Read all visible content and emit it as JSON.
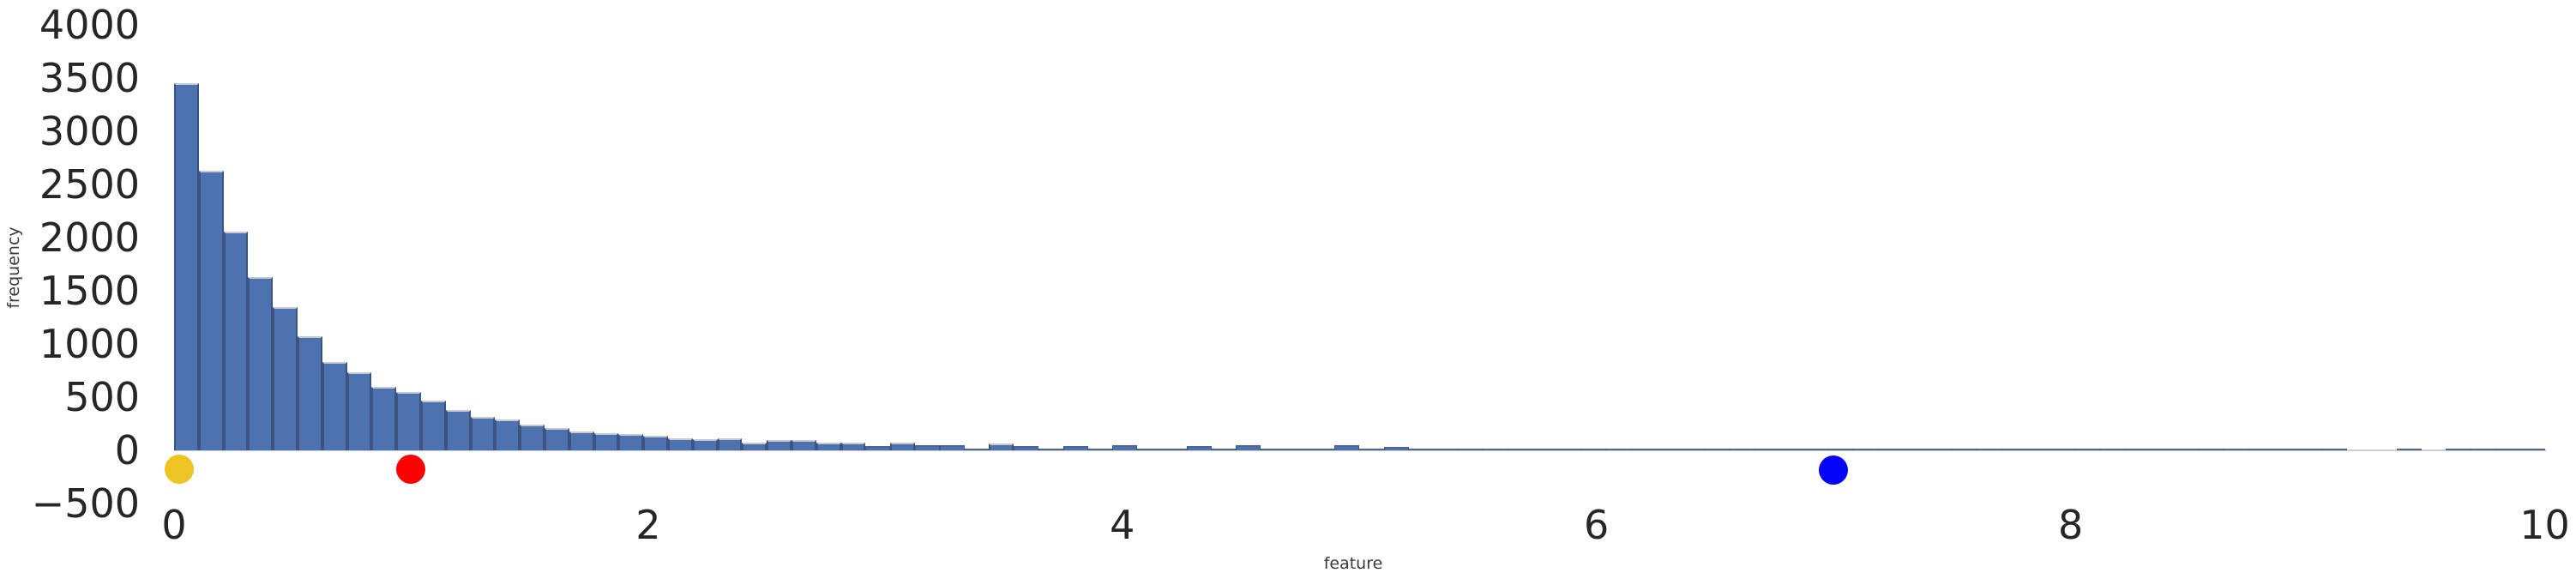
{
  "figure": {
    "background": "#ffffff",
    "text_color": "#262626"
  },
  "chart_data": {
    "type": "bar",
    "subtype": "histogram",
    "title": "",
    "xlabel": "feature",
    "ylabel": "frequency",
    "xlim": [
      0,
      10
    ],
    "ylim": [
      -500,
      4000
    ],
    "grid": false,
    "legend": false,
    "bar_color": "#4c72b0",
    "bar_edge_color": "#3d5381",
    "bin_start": 0,
    "bin_width": 0.10417,
    "bin_count": 96,
    "x_ticks": [
      {
        "v": 0,
        "label": "0"
      },
      {
        "v": 2,
        "label": "2"
      },
      {
        "v": 4,
        "label": "4"
      },
      {
        "v": 6,
        "label": "6"
      },
      {
        "v": 8,
        "label": "8"
      },
      {
        "v": 10,
        "label": "10"
      }
    ],
    "y_ticks": [
      {
        "v": 4000,
        "label": "4000"
      },
      {
        "v": 3500,
        "label": "3500"
      },
      {
        "v": 3000,
        "label": "3000"
      },
      {
        "v": 2500,
        "label": "2500"
      },
      {
        "v": 2000,
        "label": "2000"
      },
      {
        "v": 1500,
        "label": "1500"
      },
      {
        "v": 1000,
        "label": "1000"
      },
      {
        "v": 500,
        "label": "500"
      },
      {
        "v": 0,
        "label": "0"
      },
      {
        "v": -500,
        "label": "−500"
      }
    ],
    "values": [
      3450,
      2630,
      2060,
      1630,
      1350,
      1070,
      830,
      730,
      600,
      550,
      470,
      380,
      315,
      290,
      240,
      210,
      180,
      165,
      150,
      135,
      115,
      105,
      115,
      70,
      100,
      100,
      75,
      75,
      40,
      75,
      45,
      45,
      20,
      65,
      40,
      15,
      40,
      20,
      50,
      15,
      10,
      40,
      15,
      45,
      12,
      15,
      12,
      45,
      10,
      35,
      8,
      10,
      12,
      8,
      10,
      8,
      8,
      6,
      10,
      5,
      6,
      8,
      5,
      6,
      5,
      8,
      6,
      5,
      6,
      5,
      8,
      5,
      6,
      5,
      5,
      12,
      5,
      20,
      5,
      6,
      5,
      6,
      5,
      8,
      5,
      6,
      5,
      6,
      0,
      0,
      5,
      0,
      4,
      4,
      4,
      4
    ],
    "markers": [
      {
        "name": "yellow-dot",
        "x": 0.02,
        "y": -175,
        "color": "#eec323"
      },
      {
        "name": "red-dot",
        "x": 1.0,
        "y": -175,
        "color": "#fe0000"
      },
      {
        "name": "blue-dot",
        "x": 7.0,
        "y": -185,
        "color": "#0504fa"
      }
    ]
  }
}
